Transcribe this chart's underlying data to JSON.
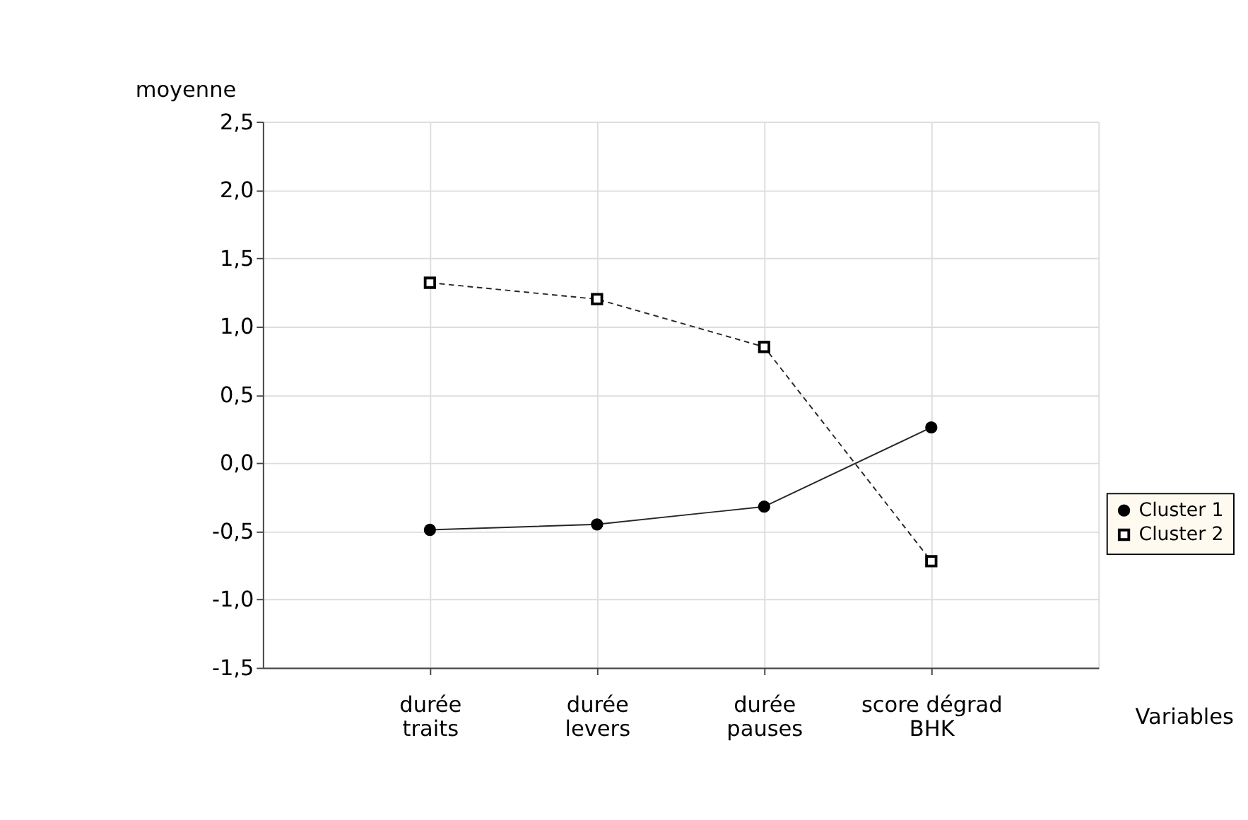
{
  "chart_data": {
    "type": "line",
    "ylabel": "moyenne",
    "xlabel": "Variables",
    "categories": [
      "durée traits",
      "durée levers",
      "durée pauses",
      "score dégrad BHK"
    ],
    "series": [
      {
        "name": "Cluster 1",
        "color": "#000000",
        "values": [
          -0.49,
          -0.45,
          -0.32,
          0.26
        ],
        "marker": "circle",
        "line_style": "solid"
      },
      {
        "name": "Cluster 2",
        "color": "#000000",
        "values": [
          1.32,
          1.2,
          0.85,
          -0.72
        ],
        "marker": "square",
        "line_style": "dashed"
      }
    ],
    "ylim": [
      -1.5,
      2.5
    ],
    "yticks": [
      {
        "value": -1.5,
        "label": "-1,5"
      },
      {
        "value": -1.0,
        "label": "-1,0"
      },
      {
        "value": -0.5,
        "label": "-0,5"
      },
      {
        "value": 0,
        "label": "0,0"
      },
      {
        "value": 0.5,
        "label": "0,5"
      },
      {
        "value": 1.0,
        "label": "1,0"
      },
      {
        "value": 1.5,
        "label": "1,5"
      },
      {
        "value": 2.0,
        "label": "2,0"
      },
      {
        "value": 2.5,
        "label": "2,5"
      }
    ],
    "grid": true,
    "legend": "bottom right"
  }
}
